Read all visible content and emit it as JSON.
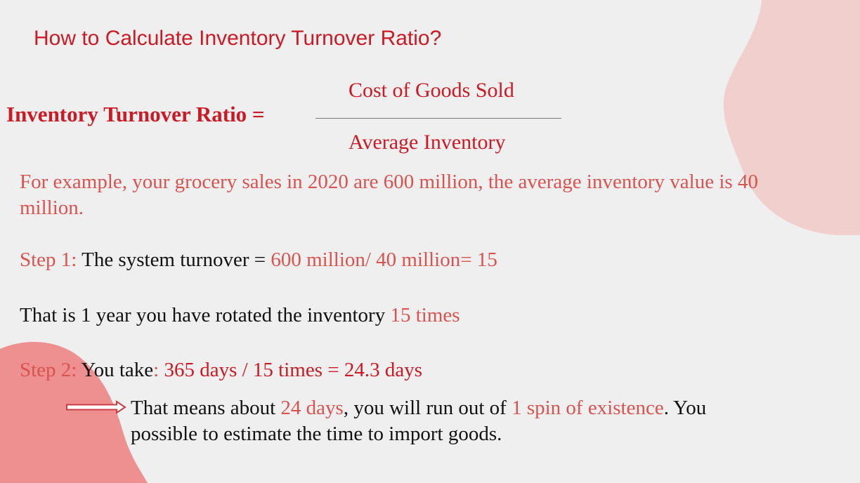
{
  "title": "How to Calculate Inventory Turnover Ratio?",
  "formula": {
    "lhs": "Inventory Turnover Ratio =",
    "numerator": "Cost of Goods Sold",
    "denominator": "Average Inventory"
  },
  "example": {
    "text": "For example, your grocery sales in 2020 are 600 million, the average inventory value is 40 million."
  },
  "step1": {
    "label": "Step 1:",
    "text": " The system turnover = ",
    "calc": "600 million/ 40 million= 15"
  },
  "rotation": {
    "text": "That is 1 year you have rotated the inventory ",
    "highlight": "15 times"
  },
  "step2": {
    "label": "Step 2:",
    "you_take": " You take",
    "colon": ": ",
    "calc": "365 days / 15 times = 24.3 days"
  },
  "conclusion": {
    "part1": "That means about ",
    "days": "24 days",
    "part2": ", you will run out of ",
    "spin": "1 spin of existence",
    "part3": ". You possible to estimate the time to import goods."
  },
  "colors": {
    "background": "#efefef",
    "title_red": "#cc1a24",
    "accent_red": "#d9534f",
    "blob_pink": "#f0cfcd",
    "blob_coral": "#ee8f90"
  }
}
